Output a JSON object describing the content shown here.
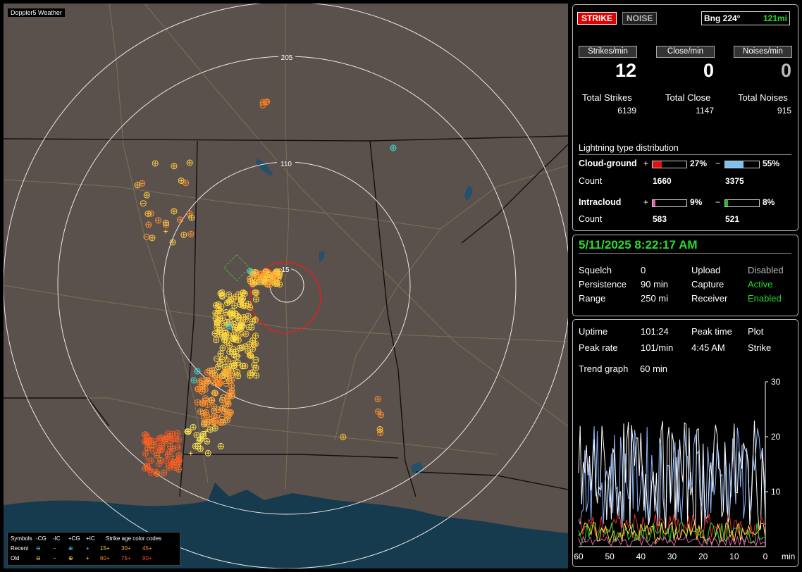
{
  "map": {
    "title": "Doppler5 Weather",
    "rings": [
      "205",
      "110",
      "15"
    ],
    "legend": {
      "header": {
        "symbols": "Symbols",
        "ncg": "-CG",
        "nic": "-IC",
        "pcg": "+CG",
        "pic": "+IC",
        "age": "Strike age color codes"
      },
      "recent": {
        "label": "Recent",
        "a": "15+",
        "b": "30+",
        "c": "45+"
      },
      "old": {
        "label": "Old",
        "a": "60+",
        "b": "75+",
        "c": "90+"
      }
    }
  },
  "top": {
    "strike_btn": "STRIKE",
    "noise_btn": "NOISE",
    "bearing": "Bng 224°",
    "distance": "121mi",
    "hdr_strikes": "Strikes/min",
    "hdr_close": "Close/min",
    "hdr_noises": "Noises/min",
    "strikes_min": "12",
    "close_min": "0",
    "noises_min": "0",
    "total_strikes_label": "Total Strikes",
    "total_close_label": "Total Close",
    "total_noises_label": "Total Noises",
    "total_strikes": "6139",
    "total_close": "1147",
    "total_noises": "915",
    "dist_title": "Lightning type distribution",
    "cg_label": "Cloud-ground",
    "cg_plus_sign": "+",
    "cg_plus_pct": "27%",
    "cg_minus_sign": "−",
    "cg_minus_pct": "55%",
    "count_label": "Count",
    "cg_plus_count": "1660",
    "cg_minus_count": "3375",
    "ic_label": "Intracloud",
    "ic_plus_sign": "+",
    "ic_plus_pct": "9%",
    "ic_minus_sign": "−",
    "ic_minus_pct": "8%",
    "ic_plus_count": "583",
    "ic_minus_count": "521",
    "bars": {
      "cg_plus": 0.27,
      "cg_minus": 0.55,
      "ic_plus": 0.09,
      "ic_minus": 0.08
    }
  },
  "status": {
    "datetime": "5/11/2025 8:22:17 AM",
    "squelch_label": "Squelch",
    "squelch": "0",
    "persistence_label": "Persistence",
    "persistence": "90 min",
    "range_label": "Range",
    "range": "250 mi",
    "upload_label": "Upload",
    "upload": "Disabled",
    "capture_label": "Capture",
    "capture": "Active",
    "receiver_label": "Receiver",
    "receiver": "Enabled"
  },
  "stats": {
    "uptime_label": "Uptime",
    "uptime": "101:24",
    "peaktime_label": "Peak time",
    "peaktime": "4:45 AM",
    "plot_label": "Plot",
    "peakrate_label": "Peak rate",
    "peakrate": "101/min",
    "plot": "Strike",
    "trend_label": "Trend graph",
    "trend": "60 min"
  },
  "chart_data": {
    "type": "line",
    "x_ticks": [
      "60",
      "50",
      "40",
      "30",
      "20",
      "10",
      "0"
    ],
    "x_unit": "min",
    "y_ticks": [
      "30",
      "20",
      "10"
    ],
    "ylim": [
      0,
      30
    ]
  },
  "colors": {
    "green": "#2cdb2c",
    "cg_plus": "#e01010",
    "cg_minus": "#7ec0f0",
    "ic_plus": "#e060b0",
    "ic_minus": "#20c020"
  }
}
